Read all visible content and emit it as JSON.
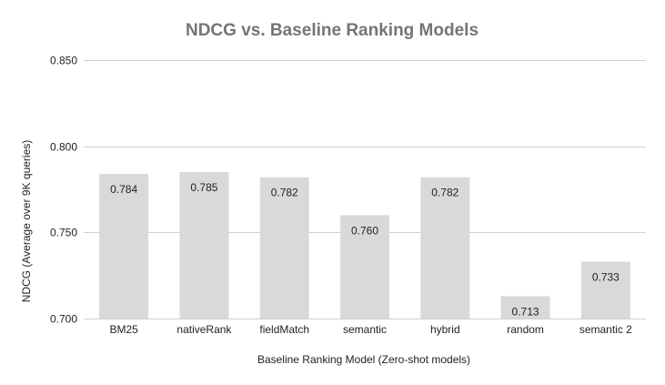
{
  "chart_data": {
    "type": "bar",
    "title": "NDCG vs. Baseline Ranking Models",
    "xlabel": "Baseline Ranking Model (Zero-shot models)",
    "ylabel": "NDCG (Average over 9K queries)",
    "categories": [
      "BM25",
      "nativeRank",
      "fieldMatch",
      "semantic",
      "hybrid",
      "random",
      "semantic 2"
    ],
    "values": [
      0.784,
      0.785,
      0.782,
      0.76,
      0.782,
      0.713,
      0.733
    ],
    "value_labels": [
      "0.784",
      "0.785",
      "0.782",
      "0.760",
      "0.782",
      "0.713",
      "0.733"
    ],
    "ylim": [
      0.7,
      0.85
    ],
    "yticks": [
      0.7,
      0.75,
      0.8,
      0.85
    ],
    "ytick_labels": [
      "0.700",
      "0.750",
      "0.800",
      "0.850"
    ],
    "grid": true,
    "legend": "none",
    "colors": {
      "bar": "#d9d9d9",
      "title": "#757575",
      "grid": "#d0d0d0"
    }
  }
}
